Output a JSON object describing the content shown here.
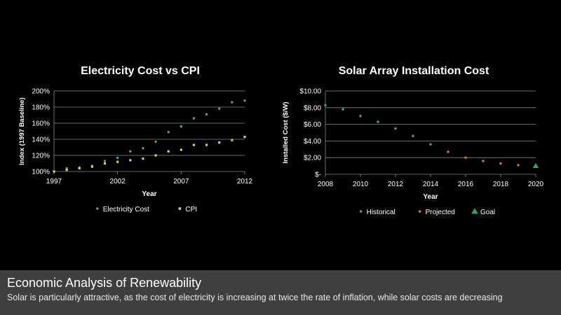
{
  "chart_data": [
    {
      "type": "scatter",
      "title": "Electricity Cost vs CPI",
      "xlabel": "Year",
      "ylabel": "Index (1997 Baseline)",
      "xlim": [
        1997,
        2012
      ],
      "ylim": [
        100,
        200
      ],
      "xticks": [
        "1997",
        "2002",
        "2007",
        "2012"
      ],
      "yticks": [
        "100%",
        "120%",
        "140%",
        "160%",
        "180%",
        "200%"
      ],
      "grid": true,
      "legend_position": "bottom",
      "series": [
        {
          "name": "Electricity Cost",
          "color": "#4ca58c",
          "marker": "dot",
          "x": [
            1997,
            1998,
            1999,
            2000,
            2001,
            2002,
            2003,
            2004,
            2005,
            2006,
            2007,
            2008,
            2009,
            2010,
            2011,
            2012
          ],
          "y": [
            100,
            104,
            105,
            107,
            113,
            117,
            125,
            129,
            137,
            149,
            156,
            166,
            171,
            178,
            186,
            188
          ]
        },
        {
          "name": "CPI",
          "color": "#c8d46a",
          "marker": "square",
          "x": [
            1997,
            1998,
            1999,
            2000,
            2001,
            2002,
            2003,
            2004,
            2005,
            2006,
            2007,
            2008,
            2009,
            2010,
            2011,
            2012
          ],
          "y": [
            100,
            102,
            104,
            106,
            110,
            112,
            114,
            116,
            120,
            125,
            127,
            133,
            133,
            136,
            139,
            143
          ]
        }
      ]
    },
    {
      "type": "scatter",
      "title": "Solar Array Installation Cost",
      "xlabel": "Year",
      "ylabel": "Installed Cost ($/W)",
      "xlim": [
        2008,
        2020
      ],
      "ylim": [
        0,
        10
      ],
      "xticks": [
        "2008",
        "2010",
        "2012",
        "2014",
        "2016",
        "2018",
        "2020"
      ],
      "yticks": [
        "$-",
        "$2.00",
        "$4.00",
        "$6.00",
        "$8.00",
        "$10.00"
      ],
      "grid": true,
      "legend_position": "bottom",
      "series": [
        {
          "name": "Historical",
          "color": "#4ca58c",
          "marker": "dot",
          "x": [
            2008,
            2009,
            2010,
            2011,
            2012,
            2013,
            2014
          ],
          "y": [
            8.3,
            7.8,
            7.0,
            6.3,
            5.5,
            4.6,
            3.6
          ]
        },
        {
          "name": "Projected",
          "color": "#e0783c",
          "marker": "dot",
          "x": [
            2015,
            2016,
            2017,
            2018,
            2019
          ],
          "y": [
            2.7,
            2.0,
            1.6,
            1.3,
            1.1
          ]
        },
        {
          "name": "Goal",
          "color": "#2eaa5a",
          "marker": "triangle",
          "x": [
            2020
          ],
          "y": [
            1.0
          ]
        }
      ]
    }
  ],
  "caption": {
    "title": "Economic Analysis of Renewability",
    "subtitle": "Solar is particularly attractive, as the cost of electricity is increasing at twice the rate of inflation, while solar costs are decreasing"
  }
}
